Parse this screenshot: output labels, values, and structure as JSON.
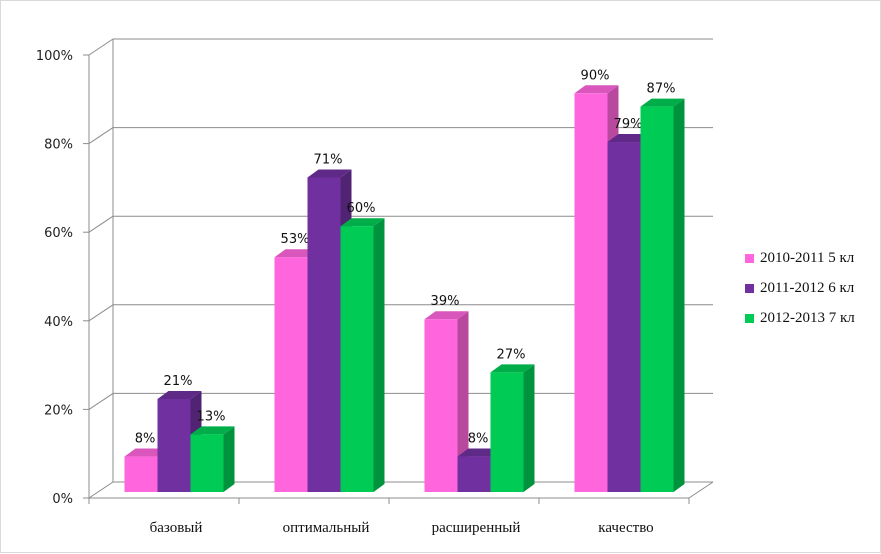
{
  "chart_data": {
    "type": "bar",
    "title": "",
    "xlabel": "",
    "ylabel": "",
    "ylim": [
      0,
      100
    ],
    "ytick_labels": [
      "0%",
      "20%",
      "40%",
      "60%",
      "80%",
      "100%"
    ],
    "yticks": [
      0,
      20,
      40,
      60,
      80,
      100
    ],
    "grid": true,
    "legend_position": "right",
    "categories": [
      "базовый",
      "оптимальный",
      "расширенный",
      "качество"
    ],
    "series": [
      {
        "name": "2010-2011 5 кл",
        "color": "#ff66dd",
        "values": [
          8,
          53,
          39,
          90
        ],
        "labels": [
          "8%",
          "53%",
          "39%",
          "90%"
        ]
      },
      {
        "name": "2011-2012 6 кл",
        "color": "#7030a0",
        "values": [
          21,
          71,
          8,
          79
        ],
        "labels": [
          "21%",
          "71%",
          "8%",
          "79%"
        ]
      },
      {
        "name": "2012-2013 7 кл",
        "color": "#00cc55",
        "values": [
          13,
          60,
          27,
          87
        ],
        "labels": [
          "13%",
          "60%",
          "27%",
          "87%"
        ]
      }
    ]
  }
}
